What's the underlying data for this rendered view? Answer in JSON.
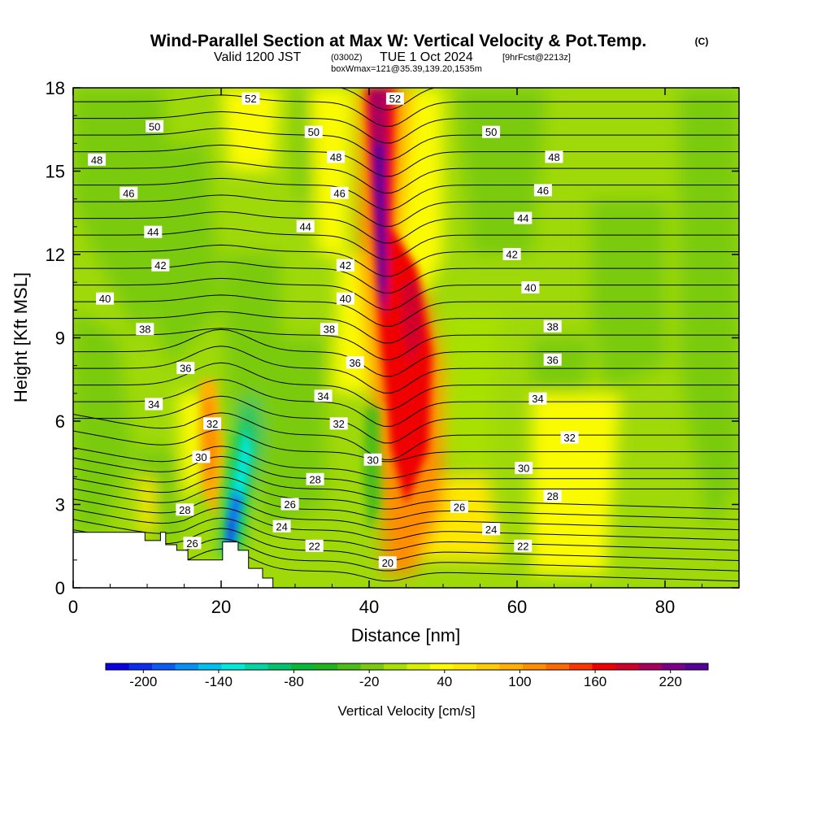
{
  "header": {
    "title": "Wind-Parallel Section at Max W: Vertical Velocity & Pot.Temp.",
    "copyright": "(C)",
    "valid_prefix": "Valid 1200 JST",
    "valid_utc": "(0300Z)",
    "valid_date": "TUE 1 Oct 2024",
    "forecast": "[9hrFcst@2213z]",
    "box_info": "boxWmax=121@35.39,139.20,1535m"
  },
  "chart_data": {
    "type": "heatmap",
    "title": "Wind-Parallel Section at Max W: Vertical Velocity & Pot.Temp.",
    "xlabel": "Distance [nm]",
    "ylabel": "Height [Kft MSL]",
    "xlim": [
      0,
      90
    ],
    "ylim": [
      0,
      18
    ],
    "x_ticks": [
      "0",
      "20",
      "40",
      "60",
      "80"
    ],
    "x_tick_values": [
      0,
      20,
      40,
      60,
      80
    ],
    "y_ticks": [
      "0",
      "3",
      "6",
      "9",
      "12",
      "15",
      "18"
    ],
    "y_tick_values": [
      0,
      3,
      6,
      9,
      12,
      15,
      18
    ],
    "colorbar": {
      "label": "Vertical Velocity [cm/s]",
      "range": [
        -230,
        250
      ],
      "tick_labels": [
        "-200",
        "-140",
        "-80",
        "-20",
        "40",
        "100",
        "160",
        "220"
      ],
      "tick_values": [
        -200,
        -140,
        -80,
        -20,
        40,
        100,
        160,
        220
      ],
      "colors": [
        "#0b00e6",
        "#0a2dee",
        "#0a5cf4",
        "#0591f5",
        "#00c0f2",
        "#00eadb",
        "#00d6a4",
        "#00c46c",
        "#06b936",
        "#20b41e",
        "#4dbd16",
        "#7acb0d",
        "#a8e000",
        "#d7ef00",
        "#fbfb00",
        "#ffe800",
        "#ffcc00",
        "#ffb000",
        "#ff8d00",
        "#ff6a00",
        "#ff3500",
        "#f00000",
        "#d0002a",
        "#a8005e",
        "#7c0088",
        "#55009a"
      ]
    },
    "features": [
      {
        "name": "updraft core",
        "x": 42,
        "y_range": [
          0.5,
          18
        ],
        "w_max": 250
      },
      {
        "name": "secondary updraft",
        "x": 46,
        "y": 9.5,
        "w": 180
      },
      {
        "name": "downdraft",
        "x": 21,
        "y": 2,
        "w": -200
      },
      {
        "name": "updraft",
        "x": 19,
        "y": 5.5,
        "w": 95
      }
    ],
    "theta_contour_labels": [
      {
        "v": "52",
        "x": 24,
        "y": 17.6
      },
      {
        "v": "52",
        "x": 43.5,
        "y": 17.6
      },
      {
        "v": "50",
        "x": 11,
        "y": 16.6
      },
      {
        "v": "50",
        "x": 32.5,
        "y": 16.4
      },
      {
        "v": "50",
        "x": 56.5,
        "y": 16.4
      },
      {
        "v": "48",
        "x": 3.2,
        "y": 15.4
      },
      {
        "v": "48",
        "x": 35.5,
        "y": 15.5
      },
      {
        "v": "48",
        "x": 65,
        "y": 15.5
      },
      {
        "v": "46",
        "x": 7.5,
        "y": 14.2
      },
      {
        "v": "46",
        "x": 36,
        "y": 14.2
      },
      {
        "v": "46",
        "x": 63.5,
        "y": 14.3
      },
      {
        "v": "44",
        "x": 10.8,
        "y": 12.8
      },
      {
        "v": "44",
        "x": 31.4,
        "y": 13.0
      },
      {
        "v": "44",
        "x": 60.8,
        "y": 13.3
      },
      {
        "v": "42",
        "x": 11.8,
        "y": 11.6
      },
      {
        "v": "42",
        "x": 36.8,
        "y": 11.6
      },
      {
        "v": "42",
        "x": 59.3,
        "y": 12.0
      },
      {
        "v": "40",
        "x": 4.3,
        "y": 10.4
      },
      {
        "v": "40",
        "x": 36.8,
        "y": 10.4
      },
      {
        "v": "40",
        "x": 61.8,
        "y": 10.8
      },
      {
        "v": "38",
        "x": 9.7,
        "y": 9.3
      },
      {
        "v": "38",
        "x": 34.6,
        "y": 9.3
      },
      {
        "v": "38",
        "x": 64.8,
        "y": 9.4
      },
      {
        "v": "36",
        "x": 15.2,
        "y": 7.9
      },
      {
        "v": "36",
        "x": 38.1,
        "y": 8.1
      },
      {
        "v": "36",
        "x": 64.8,
        "y": 8.2
      },
      {
        "v": "34",
        "x": 10.9,
        "y": 6.6
      },
      {
        "v": "34",
        "x": 33.8,
        "y": 6.9
      },
      {
        "v": "34",
        "x": 62.8,
        "y": 6.8
      },
      {
        "v": "32",
        "x": 18.8,
        "y": 5.9
      },
      {
        "v": "32",
        "x": 35.9,
        "y": 5.9
      },
      {
        "v": "32",
        "x": 67.1,
        "y": 5.4
      },
      {
        "v": "30",
        "x": 17.3,
        "y": 4.7
      },
      {
        "v": "30",
        "x": 40.5,
        "y": 4.6
      },
      {
        "v": "30",
        "x": 60.9,
        "y": 4.3
      },
      {
        "v": "28",
        "x": 15.1,
        "y": 2.8
      },
      {
        "v": "28",
        "x": 32.7,
        "y": 3.9
      },
      {
        "v": "28",
        "x": 64.8,
        "y": 3.3
      },
      {
        "v": "26",
        "x": 16.1,
        "y": 1.6
      },
      {
        "v": "26",
        "x": 29.3,
        "y": 3.0
      },
      {
        "v": "26",
        "x": 52.2,
        "y": 2.9
      },
      {
        "v": "24",
        "x": 28.2,
        "y": 2.2
      },
      {
        "v": "24",
        "x": 56.5,
        "y": 2.1
      },
      {
        "v": "22",
        "x": 32.6,
        "y": 1.5
      },
      {
        "v": "22",
        "x": 60.8,
        "y": 1.5
      },
      {
        "v": "20",
        "x": 42.5,
        "y": 0.9
      }
    ],
    "terrain_profile": [
      [
        0,
        2.0
      ],
      [
        9.7,
        2.0
      ],
      [
        9.7,
        1.7
      ],
      [
        11.8,
        1.7
      ],
      [
        11.8,
        2.0
      ],
      [
        12.5,
        2.0
      ],
      [
        12.5,
        1.55
      ],
      [
        14.0,
        1.55
      ],
      [
        14.0,
        1.35
      ],
      [
        15.5,
        1.35
      ],
      [
        15.5,
        1.0
      ],
      [
        19.0,
        1.0
      ],
      [
        19.0,
        1.0
      ],
      [
        20.2,
        1.0
      ],
      [
        20.2,
        1.65
      ],
      [
        22.3,
        1.65
      ],
      [
        22.3,
        1.35
      ],
      [
        23.7,
        1.35
      ],
      [
        23.7,
        0.7
      ],
      [
        25.6,
        0.7
      ],
      [
        25.6,
        0.35
      ],
      [
        27.0,
        0.35
      ],
      [
        27.0,
        0.0
      ],
      [
        90,
        0.0
      ]
    ]
  },
  "colorbar_ui": {
    "label": "Vertical Velocity [cm/s]",
    "ticks": [
      "-200",
      "-140",
      "-80",
      "-20",
      "40",
      "100",
      "160",
      "220"
    ]
  },
  "axes_ui": {
    "xlabel": "Distance [nm]",
    "ylabel": "Height [Kft MSL]"
  }
}
